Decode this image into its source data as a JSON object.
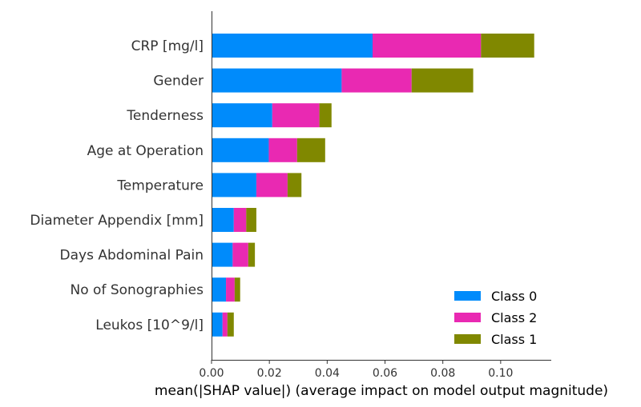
{
  "chart_data": {
    "type": "bar",
    "orientation": "horizontal",
    "stacked": true,
    "xlabel": "mean(|SHAP value|) (average impact on model output magnitude)",
    "ylabel": "",
    "xlim": [
      0,
      0.1175
    ],
    "xticks": [
      "0.00",
      "0.02",
      "0.04",
      "0.06",
      "0.08",
      "0.10"
    ],
    "xtick_values": [
      0,
      0.02,
      0.04,
      0.06,
      0.08,
      0.1
    ],
    "grid": false,
    "legend_position": "lower-right",
    "categories": [
      "CRP [mg/l]",
      "Gender",
      "Tenderness",
      "Age at Operation",
      "Temperature",
      "Diameter Appendix [mm]",
      "Days Abdominal Pain",
      "No of Sonographies",
      "Leukos [10^9/l]"
    ],
    "series": [
      {
        "name": "Class 0",
        "color": "#008bfb",
        "values": [
          0.0557,
          0.045,
          0.021,
          0.0198,
          0.0155,
          0.0077,
          0.0073,
          0.005,
          0.0038
        ]
      },
      {
        "name": "Class 2",
        "color": "#e929b2",
        "values": [
          0.0375,
          0.0242,
          0.0163,
          0.0098,
          0.0108,
          0.0043,
          0.0054,
          0.003,
          0.0017
        ]
      },
      {
        "name": "Class 1",
        "color": "#808800",
        "values": [
          0.0184,
          0.0213,
          0.0042,
          0.0097,
          0.0048,
          0.0035,
          0.0023,
          0.0019,
          0.0022
        ]
      }
    ]
  }
}
